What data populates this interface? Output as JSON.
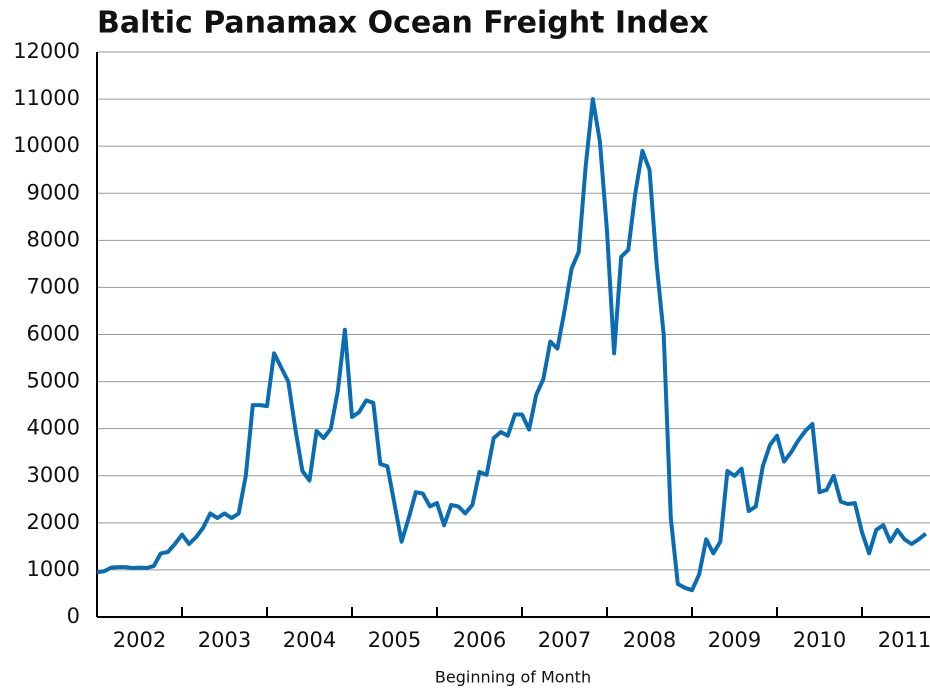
{
  "chart_data": {
    "type": "line",
    "title": "Baltic Panamax Ocean Freight Index",
    "x_label": "Beginning of Month",
    "x": [
      2002.0,
      2002.083,
      2002.167,
      2002.25,
      2002.333,
      2002.417,
      2002.5,
      2002.583,
      2002.667,
      2002.75,
      2002.833,
      2002.917,
      2003.0,
      2003.083,
      2003.167,
      2003.25,
      2003.333,
      2003.417,
      2003.5,
      2003.583,
      2003.667,
      2003.75,
      2003.833,
      2003.917,
      2004.0,
      2004.083,
      2004.167,
      2004.25,
      2004.333,
      2004.417,
      2004.5,
      2004.583,
      2004.667,
      2004.75,
      2004.833,
      2004.917,
      2005.0,
      2005.083,
      2005.167,
      2005.25,
      2005.333,
      2005.417,
      2005.5,
      2005.583,
      2005.667,
      2005.75,
      2005.833,
      2005.917,
      2006.0,
      2006.083,
      2006.167,
      2006.25,
      2006.333,
      2006.417,
      2006.5,
      2006.583,
      2006.667,
      2006.75,
      2006.833,
      2006.917,
      2007.0,
      2007.083,
      2007.167,
      2007.25,
      2007.333,
      2007.417,
      2007.5,
      2007.583,
      2007.667,
      2007.75,
      2007.833,
      2007.917,
      2008.0,
      2008.083,
      2008.167,
      2008.25,
      2008.333,
      2008.417,
      2008.5,
      2008.583,
      2008.667,
      2008.75,
      2008.833,
      2008.917,
      2009.0,
      2009.083,
      2009.167,
      2009.25,
      2009.333,
      2009.417,
      2009.5,
      2009.583,
      2009.667,
      2009.75,
      2009.833,
      2009.917,
      2010.0,
      2010.083,
      2010.167,
      2010.25,
      2010.333,
      2010.417,
      2010.5,
      2010.583,
      2010.667,
      2010.75,
      2010.833,
      2010.917,
      2011.0,
      2011.083,
      2011.167,
      2011.25,
      2011.333,
      2011.417,
      2011.5,
      2011.583,
      2011.667,
      2011.75
    ],
    "series": [
      {
        "name": "Baltic Panamax Index",
        "color": "#0a6db4",
        "values": [
          950,
          970,
          1050,
          1060,
          1060,
          1040,
          1050,
          1040,
          1080,
          1350,
          1380,
          1550,
          1750,
          1550,
          1700,
          1900,
          2200,
          2100,
          2200,
          2100,
          2200,
          3000,
          4500,
          4500,
          4480,
          5600,
          5300,
          5000,
          4000,
          3100,
          2900,
          3950,
          3800,
          4000,
          4800,
          6100,
          4250,
          4350,
          4600,
          4550,
          3250,
          3200,
          2400,
          1600,
          2100,
          2650,
          2620,
          2350,
          2420,
          1950,
          2380,
          2350,
          2200,
          2380,
          3080,
          3020,
          3800,
          3930,
          3850,
          4300,
          4300,
          3980,
          4720,
          5050,
          5850,
          5700,
          6500,
          7400,
          7750,
          9600,
          11000,
          10100,
          8200,
          5600,
          7650,
          7800,
          9000,
          9900,
          9500,
          7500,
          6000,
          2100,
          700,
          620,
          570,
          900,
          1650,
          1350,
          1600,
          3100,
          3000,
          3150,
          2250,
          2350,
          3200,
          3650,
          3850,
          3300,
          3500,
          3750,
          3950,
          4100,
          2650,
          2700,
          3000,
          2450,
          2400,
          2420,
          1800,
          1350,
          1850,
          1950,
          1600,
          1850,
          1650,
          1550,
          1650,
          1770
        ]
      }
    ],
    "xlim": [
      2002,
      2011.8
    ],
    "xticks": [
      2002,
      2003,
      2004,
      2005,
      2006,
      2007,
      2008,
      2009,
      2010,
      2011
    ],
    "ylim": [
      0,
      12000
    ],
    "yticks": [
      0,
      1000,
      2000,
      3000,
      4000,
      5000,
      6000,
      7000,
      8000,
      9000,
      10000,
      11000,
      12000
    ],
    "grid": true
  }
}
